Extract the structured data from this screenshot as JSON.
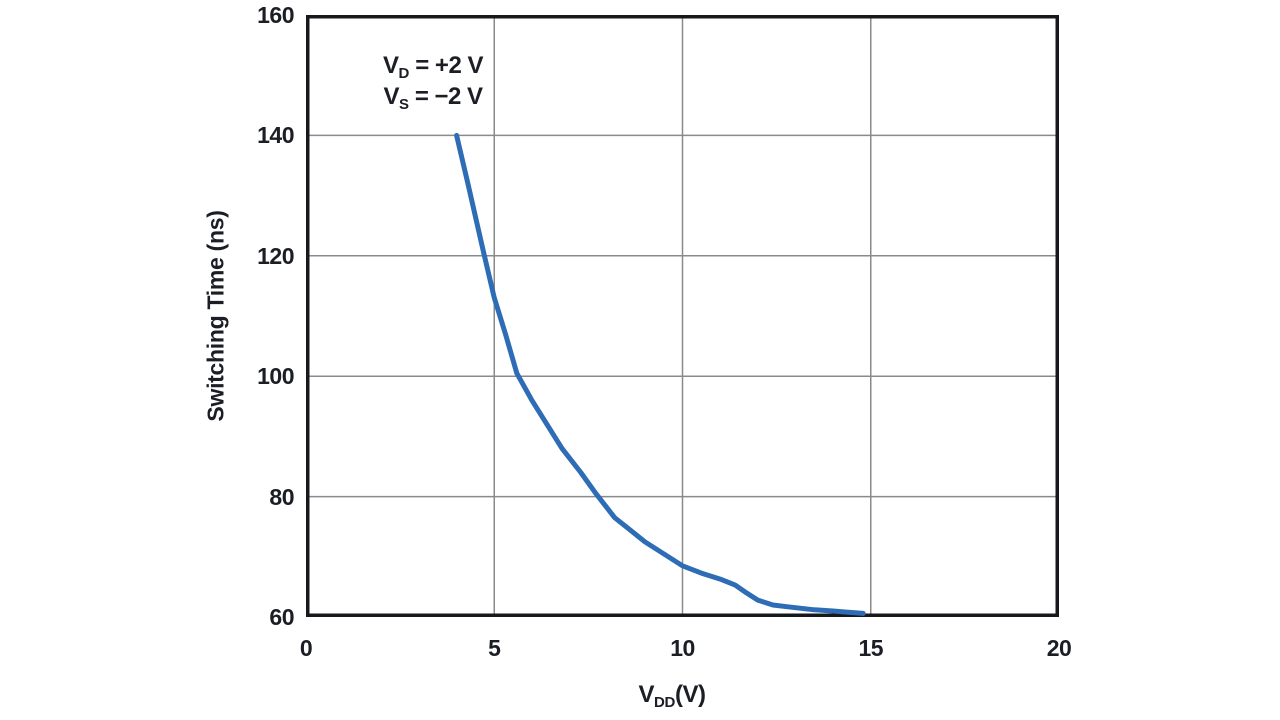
{
  "page": {
    "background": "#ffffff"
  },
  "chart_data": {
    "type": "line",
    "title": "",
    "ylabel": "Switching Time (ns)",
    "xlabel": {
      "base": "V",
      "sub": "DD",
      "rest": "(V)"
    },
    "xlim": [
      0,
      20
    ],
    "ylim": [
      60,
      160
    ],
    "x_ticks": [
      0,
      5,
      10,
      15,
      20
    ],
    "y_ticks": [
      60,
      80,
      100,
      120,
      140,
      160
    ],
    "grid": true,
    "legend_position": "none",
    "annotation": {
      "lines": [
        {
          "base": "V",
          "sub": "D",
          "rest": " = +2 V"
        },
        {
          "base": "V",
          "sub": "S",
          "rest": " = −2 V"
        }
      ]
    },
    "series": [
      {
        "name": "switching-time-vs-vdd",
        "color": "#2e6db5",
        "points": [
          [
            4.0,
            140
          ],
          [
            4.3,
            132
          ],
          [
            4.7,
            121
          ],
          [
            5.0,
            113
          ],
          [
            5.3,
            107
          ],
          [
            5.6,
            100.5
          ],
          [
            6.0,
            96
          ],
          [
            6.4,
            92
          ],
          [
            6.8,
            88
          ],
          [
            7.3,
            84
          ],
          [
            7.7,
            80.5
          ],
          [
            8.2,
            76.5
          ],
          [
            8.6,
            74.5
          ],
          [
            9.0,
            72.5
          ],
          [
            9.5,
            70.5
          ],
          [
            10.0,
            68.5
          ],
          [
            10.5,
            67.3
          ],
          [
            11.0,
            66.3
          ],
          [
            11.4,
            65.3
          ],
          [
            11.7,
            64.0
          ],
          [
            12.0,
            62.8
          ],
          [
            12.4,
            62.0
          ],
          [
            12.8,
            61.7
          ],
          [
            13.5,
            61.2
          ],
          [
            14.0,
            61.0
          ],
          [
            14.4,
            60.8
          ],
          [
            14.8,
            60.6
          ]
        ]
      }
    ],
    "colors": {
      "line": "#2e6db5",
      "grid": "#8a8a8a",
      "frame": "#17181c",
      "text": "#1c1e26",
      "background": "#ffffff"
    }
  }
}
